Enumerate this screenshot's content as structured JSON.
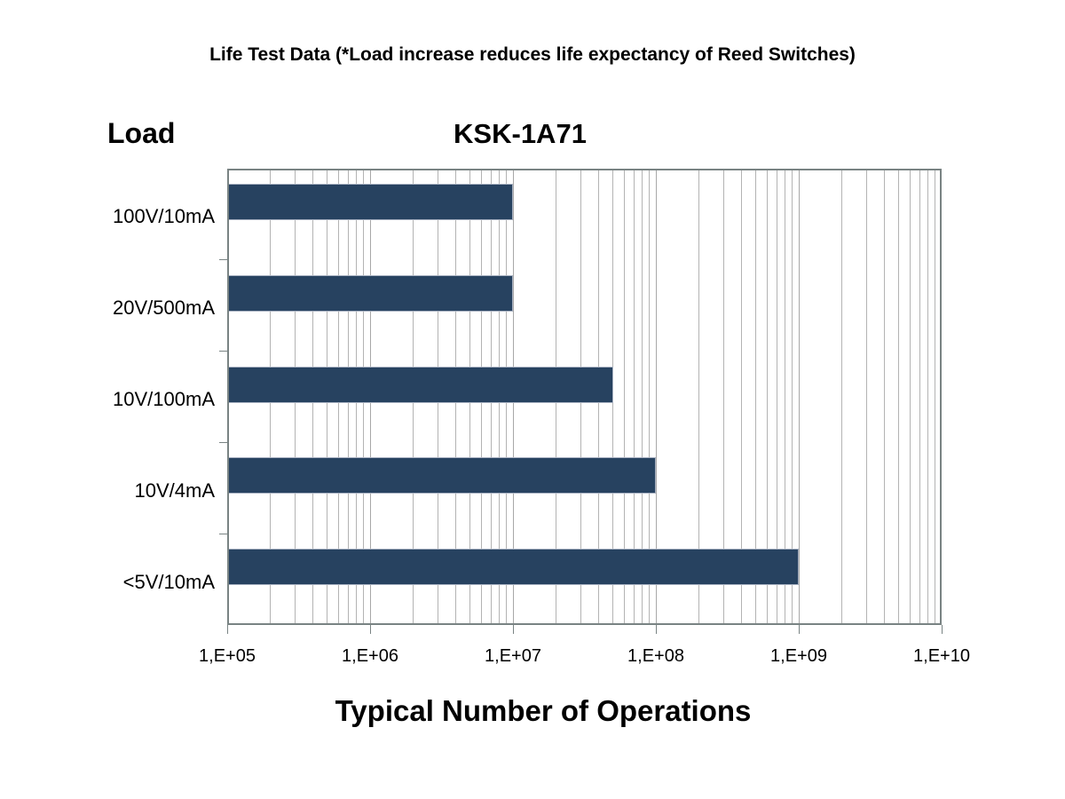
{
  "header": {
    "title": "Life Test Data (*Load increase reduces life expectancy of Reed Switches)",
    "load_heading": "Load",
    "series_heading": "KSK-1A71",
    "xaxis_title": "Typical Number of Operations"
  },
  "chart_data": {
    "type": "bar",
    "orientation": "horizontal",
    "title": "Life Test Data (*Load increase reduces life expectancy of Reed Switches)",
    "series_name": "KSK-1A71",
    "xlabel": "Typical Number of Operations",
    "ylabel": "Load",
    "x_scale": "log",
    "xlim": [
      100000,
      10000000000
    ],
    "grid": "vertical log gridlines, major and minor",
    "legend": "none",
    "categories": [
      "100V/10mA",
      "20V/500mA",
      "10V/100mA",
      "10V/4mA",
      "<5V/10mA"
    ],
    "values": [
      10000000,
      10000000,
      50000000,
      100000000,
      1000000000
    ],
    "value_labels": [
      "1E+07",
      "1E+07",
      "5E+07",
      "1E+08",
      "1E+09"
    ],
    "x_tick_values": [
      100000,
      1000000,
      10000000,
      100000000,
      1000000000,
      10000000000
    ],
    "x_tick_labels": [
      "1,E+05",
      "1,E+06",
      "1,E+07",
      "1,E+08",
      "1,E+09",
      "1,E+10"
    ],
    "colors": {
      "bar_fill": "#274260",
      "bar_border": "#a9b2c2",
      "gridline": "#b3b3b3",
      "frame": "#798383",
      "text": "#000000",
      "background": "#ffffff"
    }
  }
}
